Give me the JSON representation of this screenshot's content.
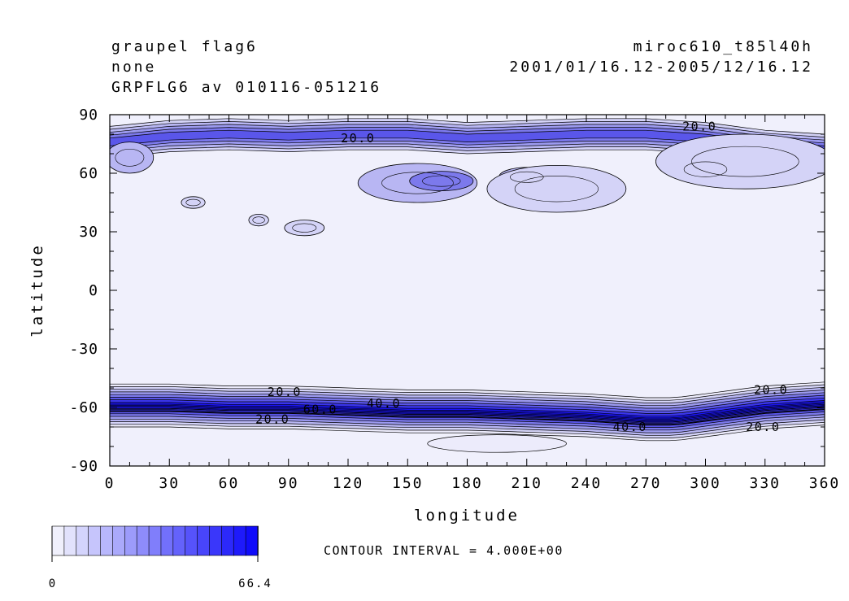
{
  "header": {
    "left_lines": [
      "graupel flag6",
      "none",
      "GRPFLG6 av 010116-051216"
    ],
    "right_lines": [
      "miroc610_t85l40h",
      "2001/01/16.12-2005/12/16.12"
    ]
  },
  "colors": {
    "base": "#f0f0fc",
    "band_colors": [
      "#ecebfb",
      "#d4d3f7",
      "#b8b6f3",
      "#9c9af0",
      "#7c79ec",
      "#5a56ea",
      "#3a35ec",
      "#1a14f6"
    ],
    "contour": "#000000"
  },
  "chart_data": {
    "type": "contour",
    "xlabel": "longitude",
    "ylabel": "latitude",
    "xlim": [
      0,
      360
    ],
    "ylim": [
      -90,
      90
    ],
    "x_ticks": [
      0,
      30,
      60,
      90,
      120,
      150,
      180,
      210,
      240,
      270,
      300,
      330,
      360
    ],
    "y_ticks": [
      90,
      60,
      30,
      0,
      -30,
      -60,
      -90
    ],
    "contour_interval_text": "CONTOUR INTERVAL = 4.000E+00",
    "colorbar": {
      "min_label": "0",
      "max_label": "66.4",
      "levels": 17
    },
    "contour_labels": [
      {
        "text": "20.0",
        "lon": 125,
        "lat": 78
      },
      {
        "text": "20.0",
        "lon": 297,
        "lat": 84
      },
      {
        "text": "20.0",
        "lon": 88,
        "lat": -52
      },
      {
        "text": "40.0",
        "lon": 138,
        "lat": -58
      },
      {
        "text": "60.0",
        "lon": 106,
        "lat": -61
      },
      {
        "text": "20.0",
        "lon": 82,
        "lat": -66
      },
      {
        "text": "40.0",
        "lon": 262,
        "lat": -70
      },
      {
        "text": "20.0",
        "lon": 333,
        "lat": -51
      },
      {
        "text": "20.0",
        "lon": 329,
        "lat": -70
      }
    ],
    "features": {
      "south_band": {
        "lon": [
          0,
          30,
          60,
          90,
          120,
          150,
          180,
          210,
          240,
          270,
          285,
          300,
          330,
          360
        ],
        "center_lat": [
          -59,
          -59,
          -60,
          -60,
          -61,
          -62,
          -62,
          -63,
          -64,
          -66,
          -66,
          -64,
          -60,
          -58
        ],
        "peak_value": 64
      },
      "south_tail": {
        "lon": [
          160,
          230
        ],
        "lat": [
          -74,
          -83
        ],
        "value": 8
      },
      "north_band": {
        "lon": [
          0,
          30,
          60,
          90,
          120,
          150,
          180,
          210,
          240,
          270,
          300,
          330,
          360
        ],
        "center_lat": [
          76,
          79,
          80,
          79,
          80,
          80,
          78,
          79,
          80,
          80,
          78,
          74,
          72
        ],
        "value": 20
      },
      "north_blobs": [
        {
          "lon": 10,
          "lat": 68,
          "rlon": 12,
          "rlat": 8,
          "value": 12
        },
        {
          "lon": 42,
          "lat": 45,
          "rlon": 6,
          "rlat": 3,
          "value": 4
        },
        {
          "lon": 75,
          "lat": 36,
          "rlon": 5,
          "rlat": 3,
          "value": 4
        },
        {
          "lon": 98,
          "lat": 32,
          "rlon": 10,
          "rlat": 4,
          "value": 4
        },
        {
          "lon": 155,
          "lat": 55,
          "rlon": 30,
          "rlat": 10,
          "value": 16
        },
        {
          "lon": 167,
          "lat": 56,
          "rlon": 16,
          "rlat": 5,
          "value": 32
        },
        {
          "lon": 210,
          "lat": 58,
          "rlon": 14,
          "rlat": 5,
          "value": 16
        },
        {
          "lon": 225,
          "lat": 52,
          "rlon": 35,
          "rlat": 12,
          "value": 8
        },
        {
          "lon": 300,
          "lat": 62,
          "rlon": 18,
          "rlat": 7,
          "value": 24
        },
        {
          "lon": 320,
          "lat": 66,
          "rlon": 45,
          "rlat": 14,
          "value": 8
        }
      ]
    }
  }
}
